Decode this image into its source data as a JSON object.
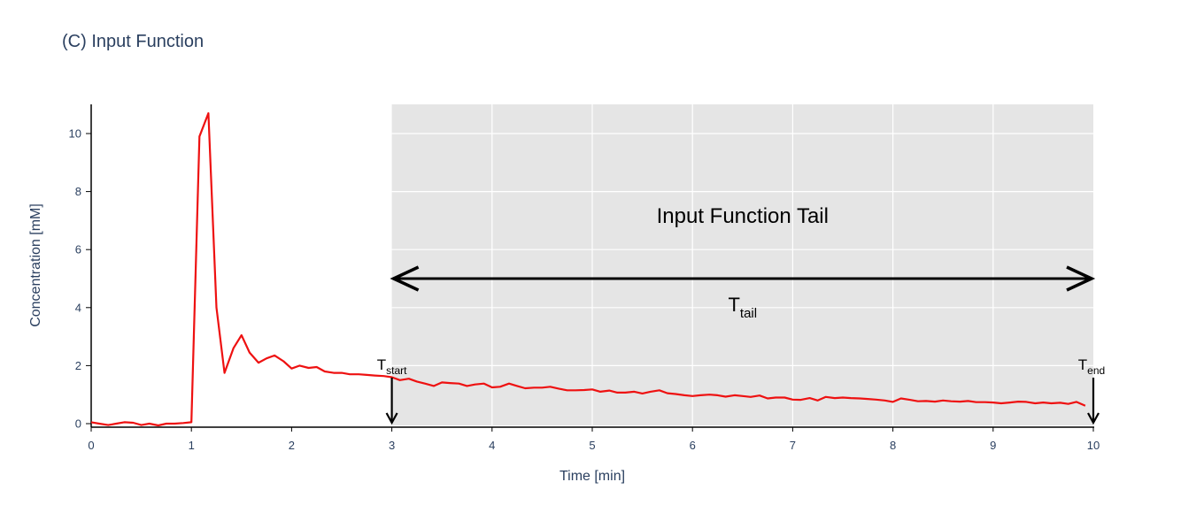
{
  "chart_data": {
    "type": "line",
    "title": "(C) Input Function",
    "xlabel": "Time [min]",
    "ylabel": "Concentration [mM]",
    "xlim": [
      0,
      10
    ],
    "ylim": [
      -0.1,
      11
    ],
    "xticks": [
      0,
      1,
      2,
      3,
      4,
      5,
      6,
      7,
      8,
      9,
      10
    ],
    "yticks": [
      0,
      2,
      4,
      6,
      8,
      10
    ],
    "grid": false,
    "colors": {
      "line": "#ee1111",
      "shade": "#e5e5e5",
      "text": "#2a3f5f",
      "annotation": "#000000"
    },
    "series": [
      {
        "x": [
          0,
          0.08,
          0.17,
          0.25,
          0.33,
          0.42,
          0.5,
          0.58,
          0.67,
          0.75,
          0.83,
          0.92,
          1.0,
          1.08,
          1.17,
          1.25,
          1.33,
          1.42,
          1.5,
          1.58,
          1.67,
          1.75,
          1.83,
          1.92,
          2.0,
          2.08,
          2.17,
          2.25,
          2.33,
          2.42,
          2.5,
          2.58,
          2.67,
          2.75,
          2.83,
          2.92,
          3.0,
          3.08,
          3.17,
          3.25,
          3.33,
          3.42,
          3.5,
          3.58,
          3.67,
          3.75,
          3.83,
          3.92,
          4.0,
          4.08,
          4.17,
          4.25,
          4.33,
          4.42,
          4.5,
          4.58,
          4.67,
          4.75,
          4.83,
          4.92,
          5.0,
          5.08,
          5.17,
          5.25,
          5.33,
          5.42,
          5.5,
          5.58,
          5.67,
          5.75,
          5.83,
          5.92,
          6.0,
          6.08,
          6.17,
          6.25,
          6.33,
          6.42,
          6.5,
          6.58,
          6.67,
          6.75,
          6.83,
          6.92,
          7.0,
          7.08,
          7.17,
          7.25,
          7.33,
          7.42,
          7.5,
          7.58,
          7.67,
          7.75,
          7.83,
          7.92,
          8.0,
          8.08,
          8.17,
          8.25,
          8.33,
          8.42,
          8.5,
          8.58,
          8.67,
          8.75,
          8.83,
          8.92,
          9.0,
          9.08,
          9.17,
          9.25,
          9.33,
          9.42,
          9.5,
          9.58,
          9.67,
          9.75,
          9.83,
          9.92
        ],
        "y": [
          0.05,
          0.0,
          -0.05,
          0.0,
          0.05,
          0.03,
          -0.05,
          0.0,
          -0.06,
          0.0,
          0.0,
          0.02,
          0.05,
          9.9,
          10.7,
          4.0,
          1.75,
          2.6,
          3.05,
          2.45,
          2.1,
          2.25,
          2.35,
          2.15,
          1.9,
          2.0,
          1.92,
          1.95,
          1.8,
          1.75,
          1.75,
          1.7,
          1.7,
          1.68,
          1.66,
          1.64,
          1.6,
          1.5,
          1.55,
          1.45,
          1.38,
          1.3,
          1.42,
          1.4,
          1.38,
          1.3,
          1.35,
          1.38,
          1.25,
          1.27,
          1.38,
          1.3,
          1.22,
          1.24,
          1.24,
          1.27,
          1.2,
          1.15,
          1.15,
          1.16,
          1.18,
          1.1,
          1.14,
          1.07,
          1.07,
          1.1,
          1.04,
          1.1,
          1.15,
          1.05,
          1.02,
          0.98,
          0.95,
          0.98,
          1.0,
          0.98,
          0.93,
          0.98,
          0.95,
          0.92,
          0.97,
          0.87,
          0.9,
          0.9,
          0.83,
          0.82,
          0.88,
          0.8,
          0.92,
          0.88,
          0.9,
          0.88,
          0.87,
          0.85,
          0.83,
          0.8,
          0.75,
          0.87,
          0.82,
          0.77,
          0.78,
          0.76,
          0.8,
          0.77,
          0.76,
          0.78,
          0.74,
          0.74,
          0.73,
          0.7,
          0.73,
          0.76,
          0.75,
          0.7,
          0.73,
          0.7,
          0.72,
          0.68,
          0.75,
          0.62
        ]
      }
    ],
    "annotations": {
      "region_label": "Input Function Tail",
      "t_tail": {
        "base": "T",
        "sub": "tail"
      },
      "t_start": {
        "base": "T",
        "sub": "start"
      },
      "t_end": {
        "base": "T",
        "sub": "end"
      },
      "shaded_region_x": [
        3,
        10
      ],
      "t_start_x": 3,
      "t_end_x": 10
    }
  }
}
